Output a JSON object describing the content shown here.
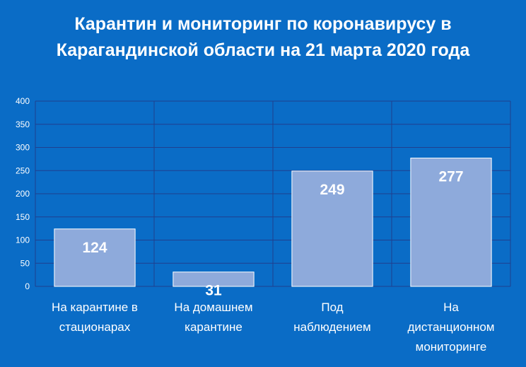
{
  "chart_data": {
    "type": "bar",
    "title": "Карантин и мониторинг по коронавирусу в Карагандинской области на 21 марта 2020 года",
    "categories": [
      [
        "На карантине в",
        "стационарах"
      ],
      [
        "На домашнем",
        "карантине"
      ],
      [
        "Под",
        "наблюдением"
      ],
      [
        "На",
        "дистанционном",
        "мониторинге"
      ]
    ],
    "values": [
      124,
      31,
      249,
      277
    ],
    "data_labels": [
      "124",
      "31",
      "249",
      "277"
    ],
    "xlabel": "",
    "ylabel": "",
    "ylim": [
      0,
      400
    ],
    "yticks": [
      0,
      50,
      100,
      150,
      200,
      250,
      300,
      350,
      400
    ],
    "grid": true,
    "legend": "none"
  },
  "colors": {
    "background": "#0a6cc6",
    "bar_fill": "#8eaadb",
    "grid": "#1f3f8f",
    "text": "#ffffff"
  }
}
